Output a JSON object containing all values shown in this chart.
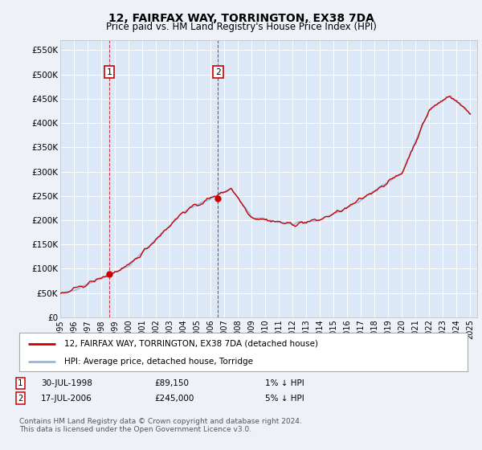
{
  "title": "12, FAIRFAX WAY, TORRINGTON, EX38 7DA",
  "subtitle": "Price paid vs. HM Land Registry's House Price Index (HPI)",
  "ylabel_ticks": [
    "£0",
    "£50K",
    "£100K",
    "£150K",
    "£200K",
    "£250K",
    "£300K",
    "£350K",
    "£400K",
    "£450K",
    "£500K",
    "£550K"
  ],
  "ytick_values": [
    0,
    50000,
    100000,
    150000,
    200000,
    250000,
    300000,
    350000,
    400000,
    450000,
    500000,
    550000
  ],
  "ylim": [
    0,
    570000
  ],
  "xlim_start": 1995.0,
  "xlim_end": 2025.5,
  "sale1": {
    "year": 1998.58,
    "price": 89150,
    "label": "1",
    "date": "30-JUL-1998",
    "hpi_diff": "1% ↓ HPI"
  },
  "sale2": {
    "year": 2006.54,
    "price": 245000,
    "label": "2",
    "date": "17-JUL-2006",
    "hpi_diff": "5% ↓ HPI"
  },
  "background_color": "#eef2f8",
  "plot_bg_color": "#dce8f5",
  "grid_color": "#ffffff",
  "hpi_line_color": "#90b8e0",
  "price_line_color": "#cc0000",
  "sale_dot_color": "#cc0000",
  "annotation_box_color": "#cc0000",
  "legend_label_price": "12, FAIRFAX WAY, TORRINGTON, EX38 7DA (detached house)",
  "legend_label_hpi": "HPI: Average price, detached house, Torridge",
  "footnote": "Contains HM Land Registry data © Crown copyright and database right 2024.\nThis data is licensed under the Open Government Licence v3.0.",
  "xtick_years": [
    1995,
    1996,
    1997,
    1998,
    1999,
    2000,
    2001,
    2002,
    2003,
    2004,
    2005,
    2006,
    2007,
    2008,
    2009,
    2010,
    2011,
    2012,
    2013,
    2014,
    2015,
    2016,
    2017,
    2018,
    2019,
    2020,
    2021,
    2022,
    2023,
    2024,
    2025
  ]
}
